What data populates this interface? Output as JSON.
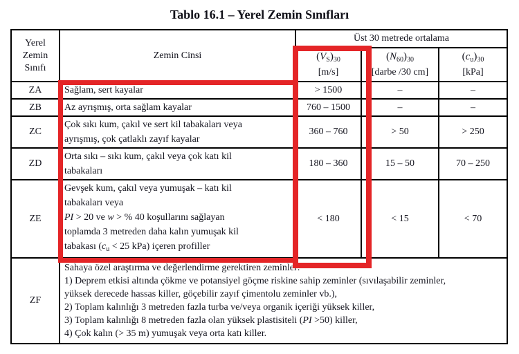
{
  "title": "Tablo 16.1 – Yerel Zemin Sınıfları",
  "highlight": {
    "color": "#e42527"
  },
  "table": {
    "header": {
      "class_col": [
        {
          "t": "Yerel"
        },
        {
          "br": true
        },
        {
          "t": "Zemin"
        },
        {
          "br": true
        },
        {
          "t": "Sınıfı"
        }
      ],
      "soil_col": "Zemin Cinsi",
      "span_top": "Üst 30 metrede ortalama",
      "metrics": [
        {
          "segments": [
            {
              "t": "("
            },
            {
              "t": "V",
              "i": true
            },
            {
              "t": "S",
              "sub": true
            },
            {
              "t": ")"
            },
            {
              "t": "30",
              "sub": true
            }
          ],
          "unit": "[m/s]"
        },
        {
          "segments": [
            {
              "t": "("
            },
            {
              "t": "N",
              "i": true
            },
            {
              "t": "60",
              "sub": true
            },
            {
              "t": ")"
            },
            {
              "t": "30",
              "sub": true
            }
          ],
          "unit": "[darbe /30 cm]"
        },
        {
          "segments": [
            {
              "t": "("
            },
            {
              "t": "c",
              "i": true
            },
            {
              "t": "u",
              "sub": true
            },
            {
              "t": ")"
            },
            {
              "t": "30",
              "sub": true
            }
          ],
          "unit": "[kPa]"
        }
      ]
    },
    "rows": [
      {
        "class": "ZA",
        "desc": [
          {
            "t": "Sağlam, sert kayalar"
          }
        ],
        "vs": "> 1500",
        "n60": "–",
        "cu": "–"
      },
      {
        "class": "ZB",
        "desc": [
          {
            "t": "Az ayrışmış, orta sağlam kayalar"
          }
        ],
        "vs": "760 – 1500",
        "n60": "–",
        "cu": "–"
      },
      {
        "class": "ZC",
        "desc": [
          {
            "t": "Çok sıkı kum, çakıl ve sert kil tabakaları veya"
          },
          {
            "br": true
          },
          {
            "t": "ayrışmış, çok çatlaklı zayıf kayalar"
          }
        ],
        "vs": "360 – 760",
        "n60": "> 50",
        "cu": "> 250"
      },
      {
        "class": "ZD",
        "desc": [
          {
            "t": "Orta sıkı – sıkı kum, çakıl veya çok katı kil"
          },
          {
            "br": true
          },
          {
            "t": "tabakaları"
          }
        ],
        "vs": "180 – 360",
        "n60": "15 – 50",
        "cu": "70 – 250"
      },
      {
        "class": "ZE",
        "desc": [
          {
            "t": "Gevşek kum, çakıl veya yumuşak – katı kil"
          },
          {
            "br": true
          },
          {
            "t": "tabakaları veya"
          },
          {
            "br": true
          },
          {
            "t": "PI",
            "i": true
          },
          {
            "t": " > 20 ve "
          },
          {
            "t": "w",
            "i": true
          },
          {
            "t": " > % 40  koşullarını sağlayan"
          },
          {
            "br": true
          },
          {
            "t": "toplamda 3 metreden daha kalın yumuşak kil"
          },
          {
            "br": true
          },
          {
            "t": "tabakası ("
          },
          {
            "t": "c",
            "i": true
          },
          {
            "t": "u",
            "sub": true
          },
          {
            "t": " < 25 kPa) içeren profiller"
          }
        ],
        "vs": "< 180",
        "n60": "< 15",
        "cu": "< 70"
      }
    ],
    "zf": {
      "class": "ZF",
      "desc": [
        {
          "t": "Sahaya özel araştırma ve değerlendirme gerektiren zeminler:"
        },
        {
          "br": true
        },
        {
          "t": "1) Deprem etkisi altında çökme ve potansiyel göçme riskine sahip zeminler (sıvılaşabilir zeminler,"
        },
        {
          "br": true
        },
        {
          "t": "yüksek derecede hassas killer, göçebilir zayıf çimentolu zeminler vb.),"
        },
        {
          "br": true
        },
        {
          "t": "2) Toplam kalınlığı 3 metreden fazla turba ve/veya organik içeriği yüksek killer,"
        },
        {
          "br": true
        },
        {
          "t": "3) Toplam kalınlığı 8 metreden fazla olan yüksek plastisiteli ("
        },
        {
          "t": "PI",
          "i": true
        },
        {
          "t": " >50) killer,"
        },
        {
          "br": true
        },
        {
          "t": "4) Çok kalın (> 35 m) yumuşak veya orta katı killer."
        }
      ]
    }
  }
}
